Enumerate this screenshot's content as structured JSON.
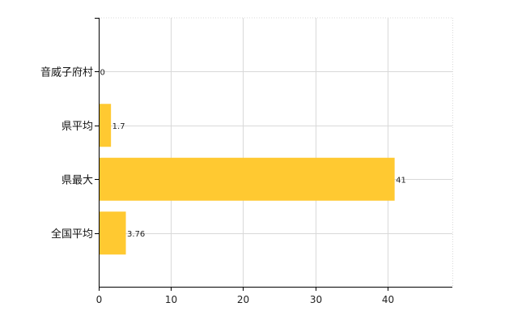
{
  "chart_data": {
    "type": "bar",
    "orientation": "horizontal",
    "categories": [
      "音威子府村",
      "県平均",
      "県最大",
      "全国平均"
    ],
    "values": [
      0,
      1.7,
      41,
      3.76
    ],
    "value_labels": [
      "0",
      "1.7",
      "41",
      "3.76"
    ],
    "xlim": [
      0,
      49
    ],
    "xticks": [
      0,
      10,
      20,
      30,
      40
    ],
    "title": "",
    "xlabel": "",
    "ylabel": "",
    "grid": true,
    "bar_color": "#FFC931"
  }
}
